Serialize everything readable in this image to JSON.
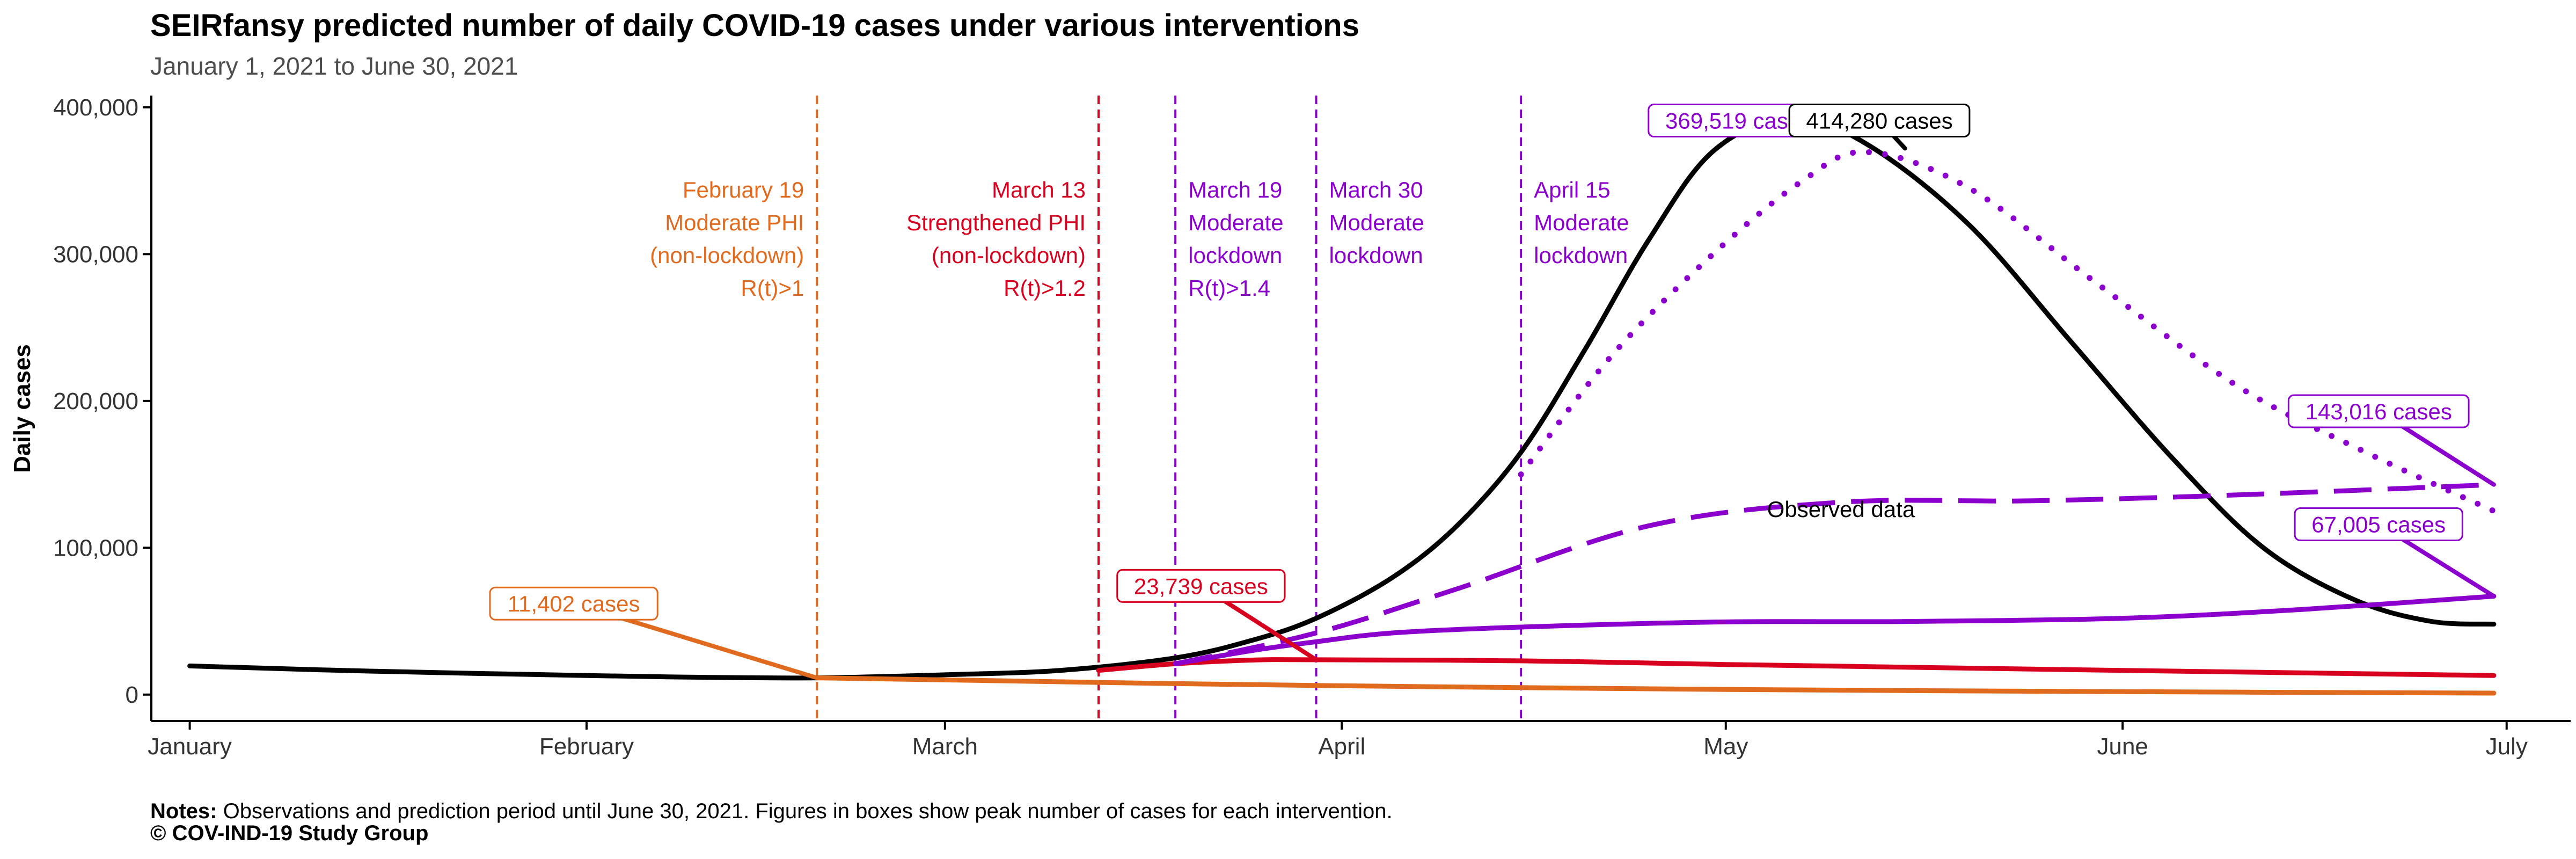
{
  "colors": {
    "observed": "#000000",
    "feb19": "#E06A1E",
    "mar13": "#D7001F",
    "purple": "#8B00CC",
    "axis": "#000000",
    "tick_text": "#333333",
    "subtitle": "#4d4d4d"
  },
  "notes": {
    "label": "Notes:",
    "text": "Observations and prediction period until June 30, 2021. Figures in boxes show peak number of cases for each intervention."
  },
  "copyright": "© COV-IND-19 Study Group",
  "chart_data": {
    "type": "line",
    "title": "SEIRfansy predicted number of daily COVID-19 cases under various interventions",
    "subtitle": "January 1, 2021 to June 30, 2021",
    "ylabel": "Daily cases",
    "xlabel": "",
    "x_range": [
      "2020-12-29",
      "2021-07-06"
    ],
    "ylim": [
      -18000,
      408000
    ],
    "x_ticks": [
      {
        "date": "2021-01-01",
        "label": "January"
      },
      {
        "date": "2021-02-01",
        "label": "February"
      },
      {
        "date": "2021-03-01",
        "label": "March"
      },
      {
        "date": "2021-04-01",
        "label": "April"
      },
      {
        "date": "2021-05-01",
        "label": "May"
      },
      {
        "date": "2021-06-01",
        "label": "June"
      },
      {
        "date": "2021-07-01",
        "label": "July"
      }
    ],
    "y_ticks": [
      {
        "value": 0,
        "label": "0"
      },
      {
        "value": 100000,
        "label": "100,000"
      },
      {
        "value": 200000,
        "label": "200,000"
      },
      {
        "value": 300000,
        "label": "300,000"
      },
      {
        "value": 400000,
        "label": "400,000"
      }
    ],
    "grid": false,
    "series": [
      {
        "color": "#000000",
        "dash": "solid",
        "points": [
          [
            "2021-01-01",
            19500
          ],
          [
            "2021-01-15",
            16000
          ],
          [
            "2021-02-01",
            13000
          ],
          [
            "2021-02-10",
            11800
          ],
          [
            "2021-02-19",
            11400
          ],
          [
            "2021-03-01",
            13500
          ],
          [
            "2021-03-10",
            16500
          ],
          [
            "2021-03-19",
            25000
          ],
          [
            "2021-03-25",
            37000
          ],
          [
            "2021-03-30",
            52000
          ],
          [
            "2021-04-05",
            80000
          ],
          [
            "2021-04-10",
            115000
          ],
          [
            "2021-04-15",
            165000
          ],
          [
            "2021-04-20",
            235000
          ],
          [
            "2021-04-25",
            310000
          ],
          [
            "2021-04-30",
            370000
          ],
          [
            "2021-05-06",
            393000
          ],
          [
            "2021-05-12",
            375000
          ],
          [
            "2021-05-20",
            320000
          ],
          [
            "2021-05-28",
            240000
          ],
          [
            "2021-06-05",
            160000
          ],
          [
            "2021-06-12",
            100000
          ],
          [
            "2021-06-19",
            65000
          ],
          [
            "2021-06-25",
            50000
          ],
          [
            "2021-06-30",
            48000
          ]
        ]
      },
      {
        "color": "#E06A1E",
        "dash": "solid",
        "points": [
          [
            "2021-02-19",
            11400
          ],
          [
            "2021-03-01",
            10000
          ],
          [
            "2021-03-15",
            8000
          ],
          [
            "2021-04-01",
            6000
          ],
          [
            "2021-05-01",
            3500
          ],
          [
            "2021-06-01",
            2000
          ],
          [
            "2021-06-30",
            1000
          ]
        ]
      },
      {
        "color": "#D7001F",
        "dash": "solid",
        "points": [
          [
            "2021-03-13",
            16500
          ],
          [
            "2021-03-19",
            21000
          ],
          [
            "2021-03-25",
            23500
          ],
          [
            "2021-03-30",
            23739
          ],
          [
            "2021-04-15",
            23000
          ],
          [
            "2021-05-01",
            20500
          ],
          [
            "2021-06-01",
            16500
          ],
          [
            "2021-06-30",
            13000
          ]
        ]
      },
      {
        "color": "#8B00CC",
        "dash": "solid",
        "points": [
          [
            "2021-03-19",
            21000
          ],
          [
            "2021-03-25",
            30000
          ],
          [
            "2021-03-30",
            36000
          ],
          [
            "2021-04-05",
            42000
          ],
          [
            "2021-04-15",
            46000
          ],
          [
            "2021-05-01",
            49500
          ],
          [
            "2021-05-15",
            49800
          ],
          [
            "2021-06-01",
            52000
          ],
          [
            "2021-06-15",
            58000
          ],
          [
            "2021-06-30",
            67005
          ]
        ]
      },
      {
        "color": "#8B00CC",
        "dash": "dashed",
        "points": [
          [
            "2021-03-19",
            21000
          ],
          [
            "2021-03-30",
            42000
          ],
          [
            "2021-04-10",
            72000
          ],
          [
            "2021-04-25",
            115000
          ],
          [
            "2021-05-10",
            131000
          ],
          [
            "2021-05-25",
            132000
          ],
          [
            "2021-06-10",
            136000
          ],
          [
            "2021-06-30",
            143016
          ]
        ]
      },
      {
        "color": "#8B00CC",
        "dash": "dotted",
        "points": [
          [
            "2021-04-15",
            150000
          ],
          [
            "2021-04-22",
            230000
          ],
          [
            "2021-04-30",
            300000
          ],
          [
            "2021-05-07",
            350000
          ],
          [
            "2021-05-12",
            369519
          ],
          [
            "2021-05-20",
            345000
          ],
          [
            "2021-05-30",
            280000
          ],
          [
            "2021-06-10",
            210000
          ],
          [
            "2021-06-20",
            165000
          ],
          [
            "2021-06-30",
            125000
          ]
        ]
      }
    ],
    "vlines": [
      {
        "date": "2021-02-19",
        "color": "#E06A1E",
        "label_side": "left",
        "lines": [
          "February 19",
          "Moderate PHI",
          "(non-lockdown)",
          "R(t)>1"
        ]
      },
      {
        "date": "2021-03-13",
        "color": "#D7001F",
        "label_side": "left",
        "lines": [
          "March 13",
          "Strengthened PHI",
          "(non-lockdown)",
          "R(t)>1.2"
        ]
      },
      {
        "date": "2021-03-19",
        "color": "#8B00CC",
        "label_side": "right",
        "lines": [
          "March 19",
          "Moderate",
          "lockdown",
          "R(t)>1.4"
        ]
      },
      {
        "date": "2021-03-30",
        "color": "#8B00CC",
        "label_side": "right",
        "lines": [
          "March 30",
          "Moderate",
          "lockdown"
        ]
      },
      {
        "date": "2021-04-15",
        "color": "#8B00CC",
        "label_side": "right",
        "lines": [
          "April 15",
          "Moderate",
          "lockdown"
        ]
      }
    ],
    "annotations": [
      {
        "text": "11,402 cases",
        "color": "#E06A1E",
        "label_x": "2021-01-31",
        "label_y": 62000,
        "point_x": "2021-02-19",
        "point_y": 11402
      },
      {
        "text": "23,739 cases",
        "color": "#D7001F",
        "label_x": "2021-03-21",
        "label_y": 74000,
        "point_x": "2021-03-30",
        "point_y": 23739
      },
      {
        "text": "369,519 cases",
        "color": "#8B00CC",
        "label_x": "2021-05-02",
        "label_y": 391000,
        "point_x": "2021-05-08",
        "point_y": 389000
      },
      {
        "text": "414,280 cases",
        "color": "#000000",
        "label_x": "2021-05-13",
        "label_y": 391000,
        "point_x": "2021-05-15",
        "point_y": 372000
      },
      {
        "text": "143,016 cases",
        "color": "#8B00CC",
        "label_x": "2021-06-21",
        "label_y": 193000,
        "point_x": "2021-06-30",
        "point_y": 143016
      },
      {
        "text": "67,005 cases",
        "color": "#8B00CC",
        "label_x": "2021-06-21",
        "label_y": 116000,
        "point_x": "2021-06-30",
        "point_y": 67005
      }
    ],
    "text_annotations": [
      {
        "text": "Observed data",
        "x": "2021-05-10",
        "y": 118000,
        "color": "#000000"
      }
    ]
  }
}
